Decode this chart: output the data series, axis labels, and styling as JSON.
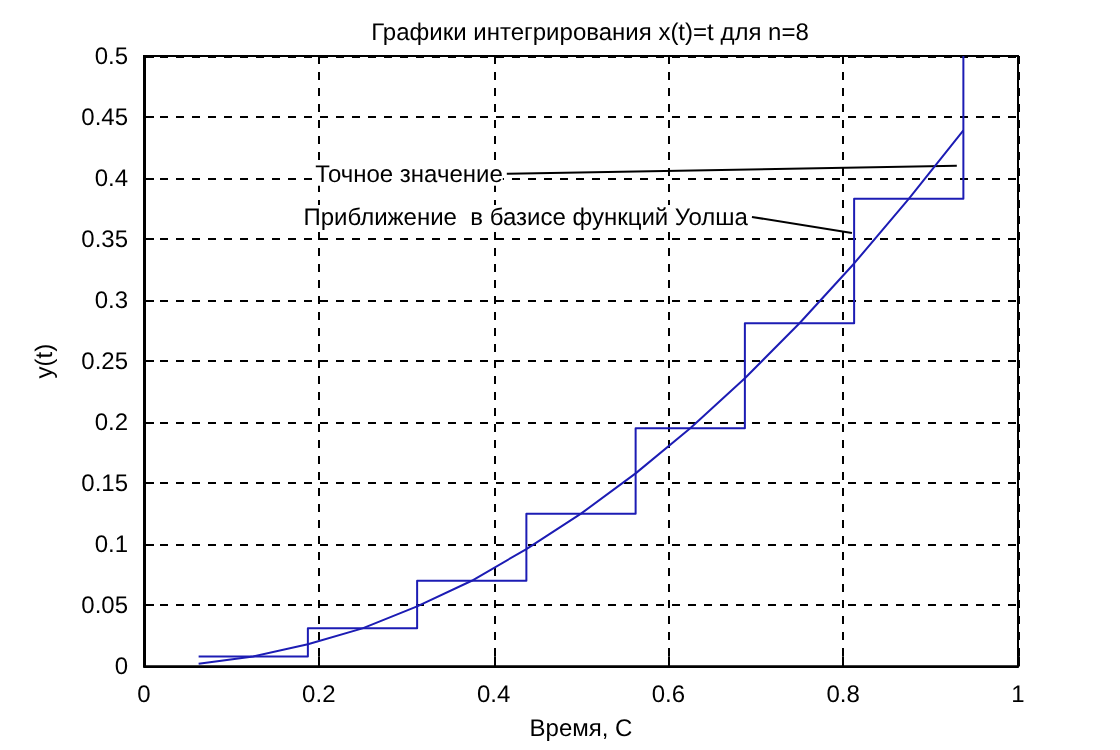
{
  "chart_data": {
    "type": "line",
    "title": "Графики интегрирования x(t)=t для n=8",
    "xlabel": "Время, С",
    "ylabel": "y(t)",
    "series": [
      {
        "color": "#1c1cb4",
        "x": [
          0.0625,
          0.125,
          0.1875,
          0.25,
          0.3125,
          0.375,
          0.4375,
          0.5,
          0.5625,
          0.625,
          0.6875,
          0.75,
          0.8125,
          0.875,
          0.9375
        ],
        "values": [
          0.002,
          0.008,
          0.018,
          0.031,
          0.049,
          0.07,
          0.096,
          0.125,
          0.158,
          0.195,
          0.236,
          0.281,
          0.33,
          0.383,
          0.439
        ]
      },
      {
        "type": "step",
        "color": "#1c1cb4",
        "x": [
          0.0625,
          0.1875,
          0.3125,
          0.4375,
          0.5625,
          0.6875,
          0.8125,
          0.9375
        ],
        "values": [
          0.008,
          0.031,
          0.07,
          0.125,
          0.195,
          0.281,
          0.383,
          0.5
        ]
      }
    ],
    "xlim": [
      0,
      1
    ],
    "xticks": [
      0,
      0.2,
      0.4,
      0.6,
      0.8,
      1
    ],
    "ylim": [
      0,
      0.5
    ],
    "yticks": [
      0,
      0.05,
      0.1,
      0.15,
      0.2,
      0.25,
      0.3,
      0.35,
      0.4,
      0.45,
      0.5
    ],
    "grid": true,
    "marker": "none",
    "line_style": "solid",
    "annotations": [
      {
        "text": "Точное значение",
        "x": 0.93,
        "y": 0.41
      },
      {
        "text": "Приближение  в базисе функций Уолша",
        "x": 0.81,
        "y": 0.355
      }
    ]
  }
}
